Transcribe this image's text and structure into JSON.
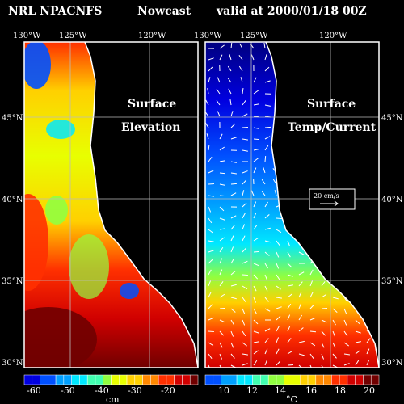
{
  "header": {
    "model": "NRL NPACNFS",
    "mode": "Nowcast",
    "valid": "valid at 2000/01/18 00Z"
  },
  "axes": {
    "lon_labels": [
      "130°W",
      "125°W",
      "120°W"
    ],
    "lat_labels": [
      "45°N",
      "40°N",
      "35°N",
      "30°N"
    ]
  },
  "panels": [
    {
      "title_line1": "Surface",
      "title_line2": "Elevation",
      "colorbar_ticks": [
        "-60",
        "-50",
        "-40",
        "-30",
        "-20"
      ],
      "unit": "cm"
    },
    {
      "title_line1": "Surface",
      "title_line2": "Temp/Current",
      "colorbar_ticks": [
        "10",
        "12",
        "14",
        "16",
        "18",
        "20"
      ],
      "unit": "°C",
      "scale_label": "20 cm/s"
    }
  ],
  "colors": {
    "background": "#000000",
    "ramp": [
      "#00007f",
      "#0000e0",
      "#0050ff",
      "#00a0ff",
      "#00e8ff",
      "#40ffb0",
      "#90ff40",
      "#e8ff00",
      "#ffd000",
      "#ff8800",
      "#ff3000",
      "#d00000",
      "#700000"
    ]
  }
}
